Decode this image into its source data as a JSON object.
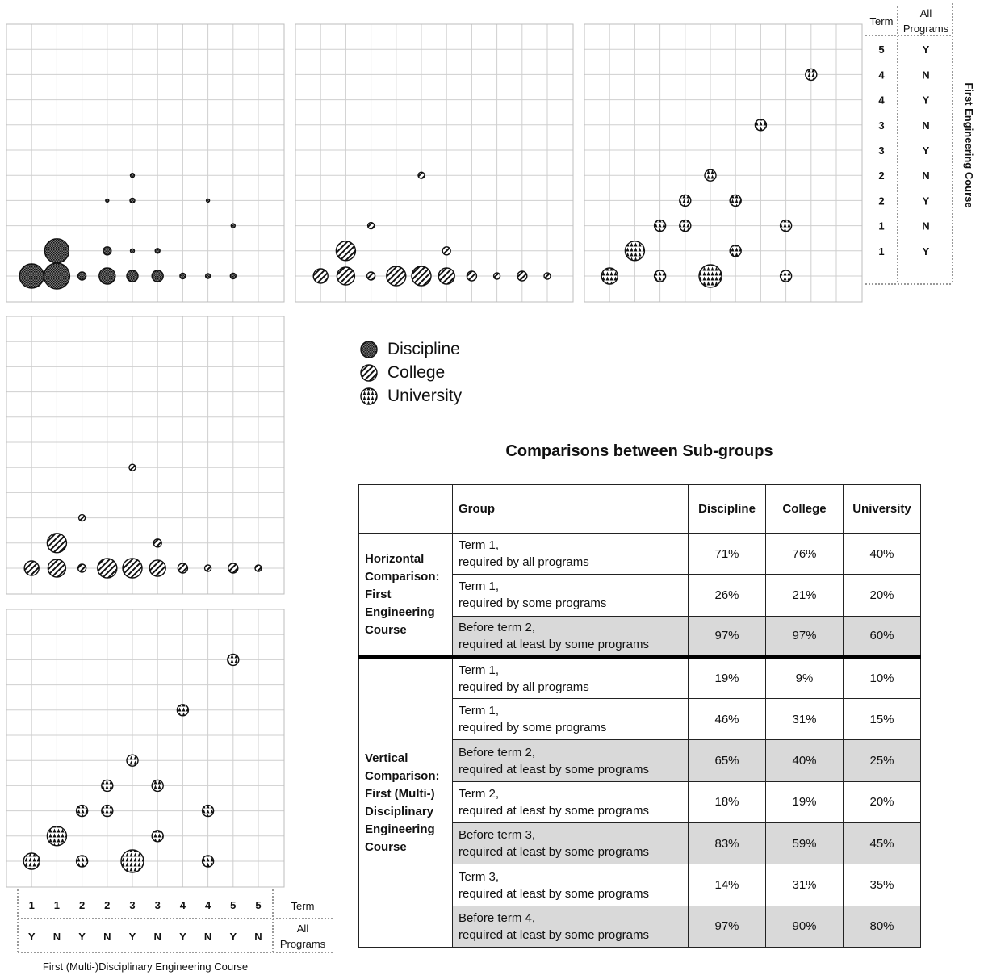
{
  "legend": [
    {
      "label": "Discipline",
      "pattern": "discipline"
    },
    {
      "label": "College",
      "pattern": "college"
    },
    {
      "label": "University",
      "pattern": "university"
    }
  ],
  "axes": {
    "bottom": {
      "term_label": "Term",
      "all_label": [
        "All",
        "Programs"
      ],
      "title": "First (Multi-)Disciplinary Engineering Course",
      "term": [
        "1",
        "1",
        "2",
        "2",
        "3",
        "3",
        "4",
        "4",
        "5",
        "5"
      ],
      "all": [
        "Y",
        "N",
        "Y",
        "N",
        "Y",
        "N",
        "Y",
        "N",
        "Y",
        "N"
      ]
    },
    "right": {
      "term_label": "Term",
      "all_label": [
        "All",
        "Programs"
      ],
      "title": "First Engineering Course",
      "term": [
        "5",
        "4",
        "4",
        "3",
        "3",
        "2",
        "2",
        "1",
        "1"
      ],
      "all": [
        "Y",
        "N",
        "Y",
        "N",
        "Y",
        "N",
        "Y",
        "N",
        "Y"
      ]
    }
  },
  "chart_data": [
    {
      "type": "scatter",
      "group": "Discipline",
      "encoding": "bubble size = share of programs; x index 0-9 = bottom axis combination, y index 0-9 = right axis combination (0 = bottom row)",
      "points": [
        {
          "x": 0,
          "y": 0,
          "r": 15
        },
        {
          "x": 1,
          "y": 0,
          "r": 16
        },
        {
          "x": 2,
          "y": 0,
          "r": 5
        },
        {
          "x": 3,
          "y": 0,
          "r": 10
        },
        {
          "x": 4,
          "y": 0,
          "r": 7
        },
        {
          "x": 5,
          "y": 0,
          "r": 7
        },
        {
          "x": 6,
          "y": 0,
          "r": 3.5
        },
        {
          "x": 7,
          "y": 0,
          "r": 3
        },
        {
          "x": 8,
          "y": 0,
          "r": 3.5
        },
        {
          "x": 1,
          "y": 1,
          "r": 15
        },
        {
          "x": 3,
          "y": 1,
          "r": 5
        },
        {
          "x": 4,
          "y": 1,
          "r": 2.5
        },
        {
          "x": 5,
          "y": 1,
          "r": 3
        },
        {
          "x": 8,
          "y": 2,
          "r": 2.5
        },
        {
          "x": 3,
          "y": 3,
          "r": 2
        },
        {
          "x": 4,
          "y": 3,
          "r": 3
        },
        {
          "x": 7,
          "y": 3,
          "r": 2
        },
        {
          "x": 4,
          "y": 4,
          "r": 2.5
        }
      ]
    },
    {
      "type": "scatter",
      "group": "College",
      "encoding": "same as Discipline",
      "points": [
        {
          "x": 0,
          "y": 0,
          "r": 9
        },
        {
          "x": 1,
          "y": 0,
          "r": 11
        },
        {
          "x": 2,
          "y": 0,
          "r": 5
        },
        {
          "x": 3,
          "y": 0,
          "r": 12
        },
        {
          "x": 4,
          "y": 0,
          "r": 12
        },
        {
          "x": 5,
          "y": 0,
          "r": 10
        },
        {
          "x": 6,
          "y": 0,
          "r": 6
        },
        {
          "x": 7,
          "y": 0,
          "r": 4
        },
        {
          "x": 8,
          "y": 0,
          "r": 6
        },
        {
          "x": 9,
          "y": 0,
          "r": 4
        },
        {
          "x": 1,
          "y": 1,
          "r": 12
        },
        {
          "x": 5,
          "y": 1,
          "r": 5
        },
        {
          "x": 2,
          "y": 2,
          "r": 4
        },
        {
          "x": 4,
          "y": 4,
          "r": 4
        }
      ]
    },
    {
      "type": "scatter",
      "group": "University",
      "encoding": "same as Discipline",
      "points": [
        {
          "x": 0,
          "y": 0,
          "r": 10
        },
        {
          "x": 2,
          "y": 0,
          "r": 7
        },
        {
          "x": 4,
          "y": 0,
          "r": 14
        },
        {
          "x": 7,
          "y": 0,
          "r": 7
        },
        {
          "x": 1,
          "y": 1,
          "r": 12
        },
        {
          "x": 5,
          "y": 1,
          "r": 7
        },
        {
          "x": 2,
          "y": 2,
          "r": 7
        },
        {
          "x": 3,
          "y": 2,
          "r": 7
        },
        {
          "x": 7,
          "y": 2,
          "r": 7
        },
        {
          "x": 3,
          "y": 3,
          "r": 7
        },
        {
          "x": 5,
          "y": 3,
          "r": 7
        },
        {
          "x": 4,
          "y": 4,
          "r": 7
        },
        {
          "x": 6,
          "y": 6,
          "r": 7
        },
        {
          "x": 8,
          "y": 8,
          "r": 7
        }
      ]
    }
  ],
  "table": {
    "title": "Comparisons between Sub-groups",
    "headers": [
      "",
      "Group",
      "Discipline",
      "College",
      "University"
    ],
    "sections": [
      {
        "label": "Horizontal Comparison: First Engineering Course",
        "rows": [
          {
            "g1": "Term 1,",
            "g2": "required by all programs",
            "values": [
              "71%",
              "76%",
              "40%"
            ],
            "shade": false
          },
          {
            "g1": "Term 1,",
            "g2": "required by some programs",
            "values": [
              "26%",
              "21%",
              "20%"
            ],
            "shade": false
          },
          {
            "g1": "Before term 2,",
            "g2": "required at least by some programs",
            "values": [
              "97%",
              "97%",
              "60%"
            ],
            "shade": true
          }
        ]
      },
      {
        "label": "Vertical Comparison: First (Multi-) Disciplinary Engineering Course",
        "rows": [
          {
            "g1": "Term 1,",
            "g2": "required by all programs",
            "values": [
              "19%",
              "9%",
              "10%"
            ],
            "shade": false
          },
          {
            "g1": "Term 1,",
            "g2": "required by some programs",
            "values": [
              "46%",
              "31%",
              "15%"
            ],
            "shade": false
          },
          {
            "g1": "Before term 2,",
            "g2": "required at least by some programs",
            "values": [
              "65%",
              "40%",
              "25%"
            ],
            "shade": true
          },
          {
            "g1": "Term 2,",
            "g2": "required at least by some programs",
            "values": [
              "18%",
              "19%",
              "20%"
            ],
            "shade": false
          },
          {
            "g1": "Before term 3,",
            "g2": "required at least by some programs",
            "values": [
              "83%",
              "59%",
              "45%"
            ],
            "shade": true
          },
          {
            "g1": "Term 3,",
            "g2": "required at least by some programs",
            "values": [
              "14%",
              "31%",
              "35%"
            ],
            "shade": false
          },
          {
            "g1": "Before term 4,",
            "g2": "required at least by some programs",
            "values": [
              "97%",
              "90%",
              "80%"
            ],
            "shade": true
          }
        ]
      }
    ]
  }
}
